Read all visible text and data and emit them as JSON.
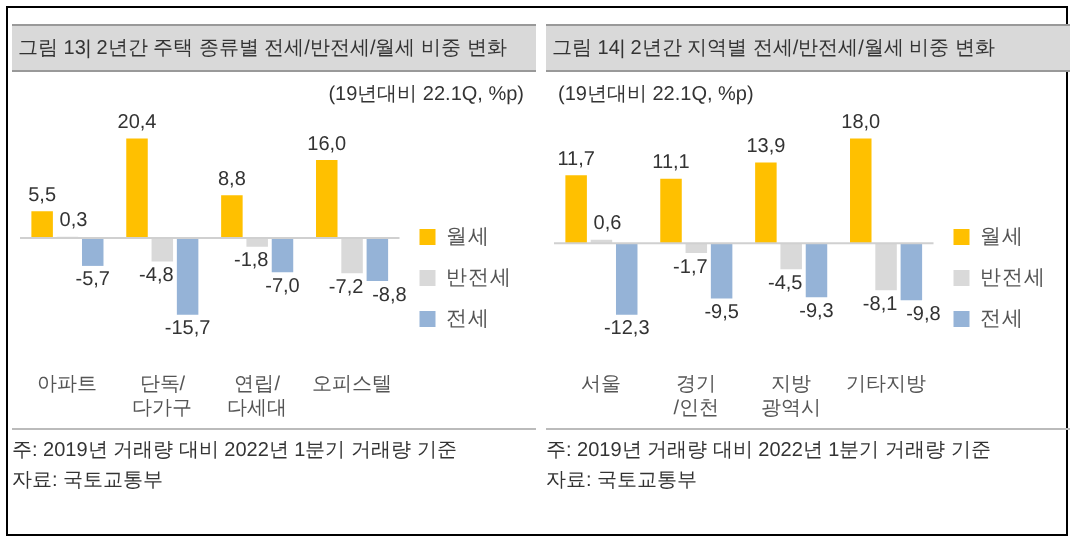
{
  "chart_data": [
    {
      "type": "bar",
      "title": "그림 13| 2년간 주택 종류별 전세/반전세/월세 비중 변화",
      "subtitle": "(19년대비 22.1Q, %p)",
      "categories": [
        "아파트",
        "단독/ 다가구",
        "연립/ 다세대",
        "오피스텔"
      ],
      "legend": "right",
      "series": [
        {
          "name": "월세",
          "color": "#ffc000",
          "values": [
            5.5,
            20.4,
            8.8,
            16.0
          ],
          "value_labels": [
            "5,5",
            "20,4",
            "8,8",
            "16,0"
          ]
        },
        {
          "name": "반전세",
          "color": "#d9d9d9",
          "values": [
            0.3,
            -4.8,
            -1.8,
            -7.2
          ],
          "value_labels": [
            "0,3",
            "-4,8",
            "-1,8",
            "-7,2"
          ]
        },
        {
          "name": "전세",
          "color": "#95b3d7",
          "values": [
            -5.7,
            -15.7,
            -7.0,
            -8.8
          ],
          "value_labels": [
            "-5,7",
            "-15,7",
            "-7,0",
            "-8,8"
          ]
        }
      ],
      "annotations": [
        "주: 2019년 거래량 대비 2022년 1분기 거래량 기준",
        "자료: 국토교통부"
      ]
    },
    {
      "type": "bar",
      "title": "그림 14| 2년간 지역별 전세/반전세/월세 비중 변화",
      "subtitle": "(19년대비 22.1Q, %p)",
      "categories": [
        "서울",
        "경기 /인천",
        "지방 광역시",
        "기타지방"
      ],
      "legend": "right",
      "series": [
        {
          "name": "월세",
          "color": "#ffc000",
          "values": [
            11.7,
            11.1,
            13.9,
            18.0
          ],
          "value_labels": [
            "11,7",
            "11,1",
            "13,9",
            "18,0"
          ]
        },
        {
          "name": "반전세",
          "color": "#d9d9d9",
          "values": [
            0.6,
            -1.7,
            -4.5,
            -8.1
          ],
          "value_labels": [
            "0,6",
            "-1,7",
            "-4,5",
            "-8,1"
          ]
        },
        {
          "name": "전세",
          "color": "#95b3d7",
          "values": [
            -12.3,
            -9.5,
            -9.3,
            -9.8
          ],
          "value_labels": [
            "-12,3",
            "-9,5",
            "-9,3",
            "-9,8"
          ]
        }
      ],
      "annotations": [
        "주: 2019년 거래량 대비 2022년 1분기 거래량 기준",
        "자료: 국토교통부"
      ]
    }
  ]
}
